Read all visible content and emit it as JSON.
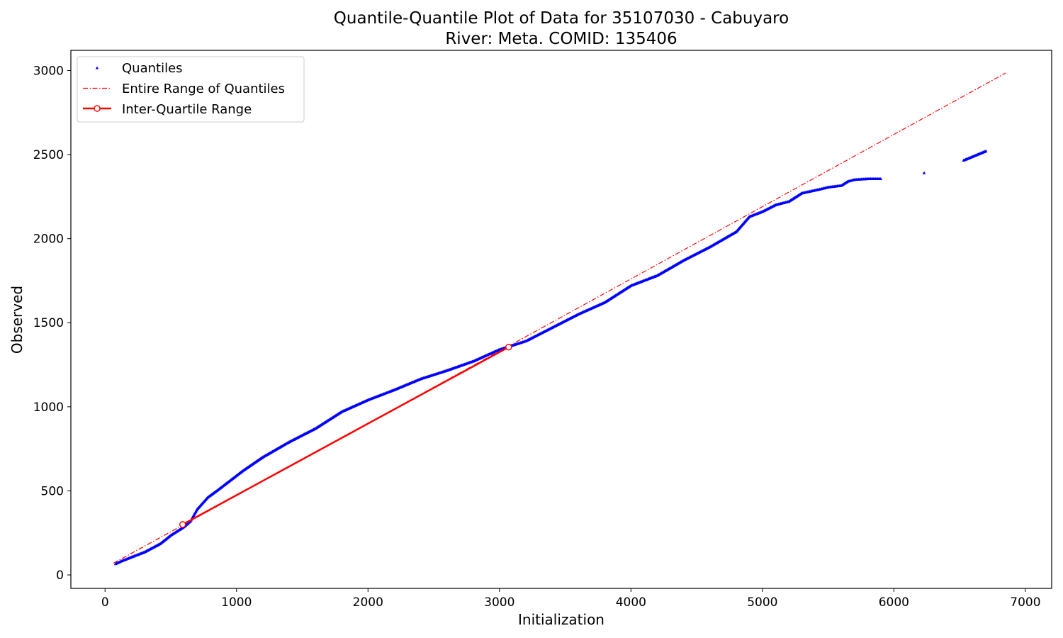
{
  "chart_data": {
    "type": "scatter",
    "title": "Quantile-Quantile Plot of Data for 35107030 - Cabuyaro",
    "subtitle": "River: Meta. COMID: 135406",
    "xlabel": "Initialization",
    "ylabel": "Observed",
    "xlim": [
      -260,
      7200
    ],
    "ylim": [
      -80,
      3120
    ],
    "xticks": [
      0,
      1000,
      2000,
      3000,
      4000,
      5000,
      6000,
      7000
    ],
    "yticks": [
      0,
      500,
      1000,
      1500,
      2000,
      2500,
      3000
    ],
    "grid": false,
    "legend_position": "top-left",
    "colors": {
      "quantiles": "#0000ff",
      "reference": "#ff0000",
      "marker_fill": "#ffffff"
    },
    "series": [
      {
        "name": "Quantiles",
        "kind": "points",
        "marker": "triangle",
        "points": [
          [
            80,
            65
          ],
          [
            120,
            80
          ],
          [
            200,
            105
          ],
          [
            300,
            135
          ],
          [
            420,
            185
          ],
          [
            500,
            235
          ],
          [
            600,
            285
          ],
          [
            650,
            320
          ],
          [
            700,
            390
          ],
          [
            780,
            460
          ],
          [
            850,
            500
          ],
          [
            950,
            560
          ],
          [
            1050,
            620
          ],
          [
            1200,
            700
          ],
          [
            1400,
            790
          ],
          [
            1600,
            870
          ],
          [
            1800,
            970
          ],
          [
            2000,
            1040
          ],
          [
            2200,
            1100
          ],
          [
            2400,
            1165
          ],
          [
            2600,
            1215
          ],
          [
            2800,
            1270
          ],
          [
            3000,
            1340
          ],
          [
            3100,
            1365
          ],
          [
            3200,
            1390
          ],
          [
            3400,
            1470
          ],
          [
            3600,
            1550
          ],
          [
            3800,
            1620
          ],
          [
            4000,
            1720
          ],
          [
            4200,
            1780
          ],
          [
            4400,
            1870
          ],
          [
            4600,
            1950
          ],
          [
            4800,
            2040
          ],
          [
            4900,
            2130
          ],
          [
            5000,
            2160
          ],
          [
            5100,
            2200
          ],
          [
            5200,
            2220
          ],
          [
            5300,
            2270
          ],
          [
            5420,
            2290
          ],
          [
            5500,
            2305
          ],
          [
            5600,
            2315
          ],
          [
            5650,
            2340
          ],
          [
            5700,
            2350
          ],
          [
            5800,
            2355
          ],
          [
            5900,
            2355
          ],
          [
            6230,
            2390
          ],
          [
            6530,
            2465
          ],
          [
            6700,
            2520
          ]
        ]
      },
      {
        "name": "Entire Range of Quantiles",
        "kind": "dashdot-line",
        "points": [
          [
            65,
            70
          ],
          [
            6850,
            2985
          ]
        ]
      },
      {
        "name": "Inter-Quartile Range",
        "kind": "solid-line-with-markers",
        "points": [
          [
            590,
            300
          ],
          [
            3070,
            1355
          ]
        ]
      }
    ]
  }
}
